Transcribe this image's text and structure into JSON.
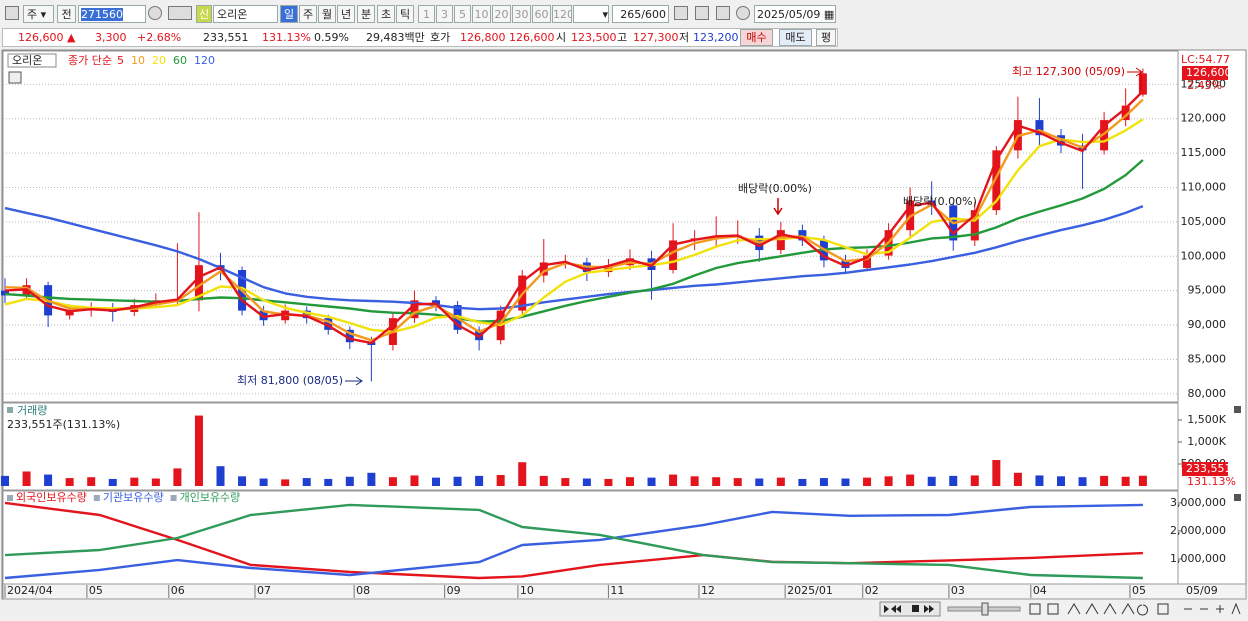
{
  "toolbar": {
    "view": "주",
    "prev": "전",
    "code": "271560",
    "badge": "신",
    "name": "오리온",
    "periods": [
      "일",
      "주",
      "월",
      "년",
      "분",
      "초",
      "틱"
    ],
    "intervals": [
      "1",
      "3",
      "5",
      "10",
      "20",
      "30",
      "60",
      "120"
    ],
    "count": "265",
    "total": "/600",
    "date": "2025/05/09"
  },
  "quote": {
    "price": "126,600 ▲",
    "change": "3,300",
    "rate": "+2.68%",
    "volume": "233,551",
    "vol_rate": "131.13%",
    "turnover": "0.59%",
    "amount": "29,483백만",
    "hoga_label": "호가",
    "ask": "126,800",
    "bid": "126,600",
    "open_label": "시",
    "open": "123,500",
    "high_label": "고",
    "high": "127,300",
    "low_label": "저",
    "low": "123,200",
    "buy": "매수",
    "sell": "매도",
    "avg": "평"
  },
  "chart_data": [
    {
      "type": "candlestick",
      "name": "오리온",
      "ma_label": "종가 단순",
      "x": [
        0,
        5,
        10,
        15,
        20,
        25,
        30,
        35,
        40,
        45,
        50,
        55,
        60,
        65,
        70,
        75,
        80,
        85,
        90,
        95,
        100,
        105,
        110,
        115,
        120,
        125,
        130,
        135,
        140,
        145,
        150,
        155,
        160,
        165,
        170,
        175,
        180,
        185,
        190,
        195,
        200,
        205,
        210,
        215,
        220,
        225,
        230,
        235,
        240,
        245,
        250,
        255,
        260,
        264
      ],
      "open": [
        95000,
        94300,
        95800,
        91400,
        92100,
        92400,
        91900,
        92900,
        93600,
        93600,
        98700,
        98000,
        92100,
        90700,
        92100,
        91000,
        89300,
        87500,
        87100,
        91000,
        93600,
        92900,
        89300,
        87800,
        92100,
        97200,
        99100,
        99100,
        97700,
        98700,
        99700,
        98000,
        102300,
        102600,
        103000,
        103000,
        100900,
        103800,
        102300,
        99400,
        98300,
        100100,
        103800,
        108100,
        107400,
        102300,
        106700,
        115400,
        119800,
        117600,
        116100,
        115400,
        119800,
        123500
      ],
      "high": [
        96800,
        96800,
        96300,
        93000,
        93300,
        93200,
        93800,
        94600,
        101900,
        106400,
        100500,
        98500,
        92800,
        93000,
        92700,
        91500,
        89800,
        88300,
        91800,
        95000,
        94200,
        93500,
        89800,
        92800,
        98000,
        102500,
        100200,
        99800,
        99600,
        101000,
        100800,
        104800,
        103800,
        105800,
        105200,
        104100,
        105000,
        104600,
        103000,
        100200,
        101000,
        104800,
        110000,
        110900,
        107800,
        107900,
        116000,
        123200,
        123000,
        118500,
        117800,
        121000,
        124400,
        127300
      ],
      "low": [
        93200,
        93800,
        89700,
        90800,
        91200,
        90500,
        91300,
        92500,
        92800,
        92000,
        96500,
        91400,
        89900,
        90200,
        90200,
        88600,
        86500,
        81800,
        86300,
        90300,
        92000,
        88700,
        86300,
        87200,
        91600,
        96200,
        98200,
        96400,
        97000,
        98000,
        93700,
        97500,
        100900,
        101500,
        101800,
        99200,
        100300,
        101500,
        98400,
        97400,
        97900,
        99500,
        102800,
        106000,
        100800,
        101500,
        106000,
        114200,
        115800,
        115000,
        109800,
        114800,
        118900,
        123200
      ],
      "close": [
        94300,
        95800,
        91400,
        92100,
        92400,
        91900,
        92900,
        93600,
        93600,
        98700,
        98000,
        92100,
        90700,
        92100,
        91000,
        89300,
        87500,
        87100,
        91000,
        93600,
        92900,
        89300,
        87800,
        92100,
        97200,
        99100,
        99100,
        97700,
        98700,
        99700,
        98000,
        102300,
        102600,
        103000,
        103000,
        100900,
        103800,
        102300,
        99400,
        98300,
        100100,
        103800,
        108100,
        107400,
        102300,
        106700,
        115400,
        119800,
        117600,
        116100,
        115400,
        119800,
        121900,
        126600
      ],
      "up_color": "#e3141c",
      "down_color": "#1f3fd0",
      "series": [
        {
          "name": "5",
          "color": "#e3141c",
          "values": [
            95000,
            95200,
            92800,
            92000,
            92300,
            92100,
            92600,
            93300,
            93700,
            97000,
            98400,
            93600,
            91200,
            91600,
            91300,
            89900,
            88000,
            87400,
            90000,
            93000,
            93100,
            90000,
            88300,
            91200,
            96300,
            98700,
            99200,
            98000,
            98600,
            99500,
            98600,
            101700,
            102400,
            102900,
            103000,
            101500,
            103200,
            102600,
            100000,
            98600,
            99800,
            103200,
            107300,
            107800,
            103300,
            106000,
            114000,
            119000,
            118000,
            116500,
            115300,
            119000,
            121500,
            124000
          ]
        },
        {
          "name": "10",
          "color": "#f39a1e",
          "values": [
            95500,
            95400,
            93500,
            92400,
            92300,
            92200,
            92400,
            93000,
            93500,
            95700,
            97800,
            95000,
            92000,
            91500,
            91400,
            90500,
            88800,
            87800,
            89000,
            91800,
            92800,
            91000,
            89000,
            90300,
            94500,
            97800,
            99000,
            98500,
            98400,
            99100,
            98900,
            100600,
            101900,
            102600,
            102900,
            102000,
            102700,
            102900,
            101000,
            99300,
            99600,
            102000,
            105800,
            107500,
            104800,
            105500,
            111500,
            117500,
            118300,
            117000,
            115800,
            117800,
            120400,
            122800
          ]
        },
        {
          "name": "20",
          "color": "#f2e20c",
          "values": [
            93000,
            93800,
            93500,
            92800,
            92500,
            92400,
            92400,
            92600,
            92900,
            94200,
            95600,
            95400,
            93600,
            92500,
            91800,
            91200,
            90300,
            89300,
            89000,
            89800,
            91100,
            91300,
            90400,
            90000,
            91400,
            94000,
            96300,
            97600,
            98000,
            98400,
            98700,
            99200,
            100200,
            101400,
            102300,
            102500,
            102500,
            102800,
            102400,
            101300,
            100300,
            100600,
            102700,
            105000,
            105500,
            105200,
            108000,
            112500,
            116000,
            117000,
            116600,
            116700,
            118300,
            119900
          ]
        },
        {
          "name": "60",
          "color": "#229a3c",
          "values": [
            94500,
            94300,
            94000,
            93800,
            93700,
            93600,
            93500,
            93400,
            93500,
            93800,
            94000,
            93900,
            93600,
            93300,
            93000,
            92700,
            92400,
            92000,
            91800,
            91700,
            91500,
            91000,
            90500,
            90600,
            91200,
            92000,
            92800,
            93500,
            94100,
            94700,
            95200,
            96000,
            97200,
            98300,
            99000,
            99500,
            100000,
            100500,
            101000,
            101200,
            101300,
            101500,
            102000,
            102600,
            102800,
            103200,
            104200,
            105500,
            106500,
            107400,
            108400,
            109800,
            111800,
            114000
          ]
        },
        {
          "name": "120",
          "color": "#3a5fe0",
          "values": [
            107000,
            106300,
            105600,
            104800,
            104000,
            103200,
            102400,
            101600,
            100700,
            99600,
            98300,
            96900,
            95500,
            94600,
            94100,
            93800,
            93600,
            93500,
            93400,
            93200,
            92900,
            92500,
            92300,
            92400,
            92800,
            93300,
            93700,
            94100,
            94500,
            94800,
            95100,
            95400,
            95700,
            95900,
            96200,
            96500,
            96800,
            97100,
            97300,
            97600,
            98000,
            98400,
            98800,
            99300,
            99900,
            100500,
            101300,
            102200,
            103000,
            103800,
            104500,
            105300,
            106300,
            107300
          ]
        }
      ],
      "xlim": [
        -1,
        265
      ],
      "xticks": [
        {
          "value": 0,
          "label": "2024/04"
        },
        {
          "value": 19,
          "label": "05"
        },
        {
          "value": 38,
          "label": "06"
        },
        {
          "value": 58,
          "label": "07"
        },
        {
          "value": 81,
          "label": "08"
        },
        {
          "value": 102,
          "label": "09"
        },
        {
          "value": 119,
          "label": "10"
        },
        {
          "value": 140,
          "label": "11"
        },
        {
          "value": 161,
          "label": "12"
        },
        {
          "value": 181,
          "label": "2025/01"
        },
        {
          "value": 199,
          "label": "02"
        },
        {
          "value": 219,
          "label": "03"
        },
        {
          "value": 238,
          "label": "04"
        },
        {
          "value": 261,
          "label": "05"
        }
      ],
      "last_date": "05/09",
      "ylim": [
        79100,
        129700
      ],
      "yticks": [
        {
          "value": 80000,
          "label": "80,000"
        },
        {
          "value": 85000,
          "label": "85,000"
        },
        {
          "value": 90000,
          "label": "90,000"
        },
        {
          "value": 95000,
          "label": "95,000"
        },
        {
          "value": 100000,
          "label": "100,000"
        },
        {
          "value": 105000,
          "label": "105,000"
        },
        {
          "value": 110000,
          "label": "110,000"
        },
        {
          "value": 115000,
          "label": "115,000"
        },
        {
          "value": 120000,
          "label": "120,000"
        },
        {
          "value": 125000,
          "label": "125,000"
        }
      ],
      "grid": true,
      "annotations": {
        "high": "최고 127,300 (05/09)",
        "low": "최저 81,800 (08/05)",
        "dividend": [
          "배당락(0.00%)",
          "배당락(0.00%)"
        ]
      },
      "right_labels": {
        "lc": "LC:54.77",
        "price": "126,600",
        "rate": "2.43%"
      }
    },
    {
      "type": "bar",
      "title": "거래량",
      "subtitle": "233,551주(131.13%)",
      "values": [
        230000,
        330000,
        260000,
        180000,
        200000,
        160000,
        190000,
        170000,
        400000,
        1600000,
        450000,
        220000,
        170000,
        150000,
        180000,
        160000,
        210000,
        300000,
        200000,
        240000,
        190000,
        210000,
        230000,
        250000,
        540000,
        230000,
        180000,
        170000,
        160000,
        200000,
        190000,
        260000,
        220000,
        200000,
        180000,
        170000,
        190000,
        160000,
        180000,
        170000,
        190000,
        220000,
        260000,
        210000,
        230000,
        240000,
        590000,
        300000,
        240000,
        220000,
        200000,
        230000,
        210000,
        233551
      ],
      "ylim": [
        0,
        1840000
      ],
      "yticks": [
        {
          "value": 500000,
          "label": "500,000"
        },
        {
          "value": 1000000,
          "label": "1,000K"
        },
        {
          "value": 1500000,
          "label": "1,500K"
        }
      ],
      "right_labels": {
        "volume": "233,551",
        "rate": "131.13%"
      }
    },
    {
      "type": "line",
      "x": [
        0,
        22,
        40,
        57,
        80,
        110,
        120,
        138,
        162,
        178,
        196,
        219,
        238,
        264
      ],
      "series": [
        {
          "name": "외국인보유수량",
          "color": "#e3141c",
          "values": [
            3000000,
            2570000,
            1680000,
            790000,
            540000,
            320000,
            380000,
            790000,
            1140000,
            900000,
            850000,
            950000,
            1040000,
            1210000
          ]
        },
        {
          "name": "기관보유수량",
          "color": "#3a5fe0",
          "values": [
            320000,
            610000,
            960000,
            680000,
            430000,
            890000,
            1500000,
            1680000,
            2210000,
            2680000,
            2540000,
            2570000,
            2860000,
            2930000
          ]
        },
        {
          "name": "개인보유수량",
          "color": "#2f9a5a",
          "values": [
            1140000,
            1320000,
            1750000,
            2570000,
            2930000,
            2750000,
            2140000,
            1860000,
            1140000,
            890000,
            850000,
            790000,
            430000,
            320000
          ]
        }
      ],
      "ylim": [
        143000,
        3390000
      ],
      "yticks": [
        {
          "value": 1000000,
          "label": "1,000,000"
        },
        {
          "value": 2000000,
          "label": "2,000,000"
        },
        {
          "value": 3000000,
          "label": "3,000,000"
        }
      ]
    }
  ]
}
